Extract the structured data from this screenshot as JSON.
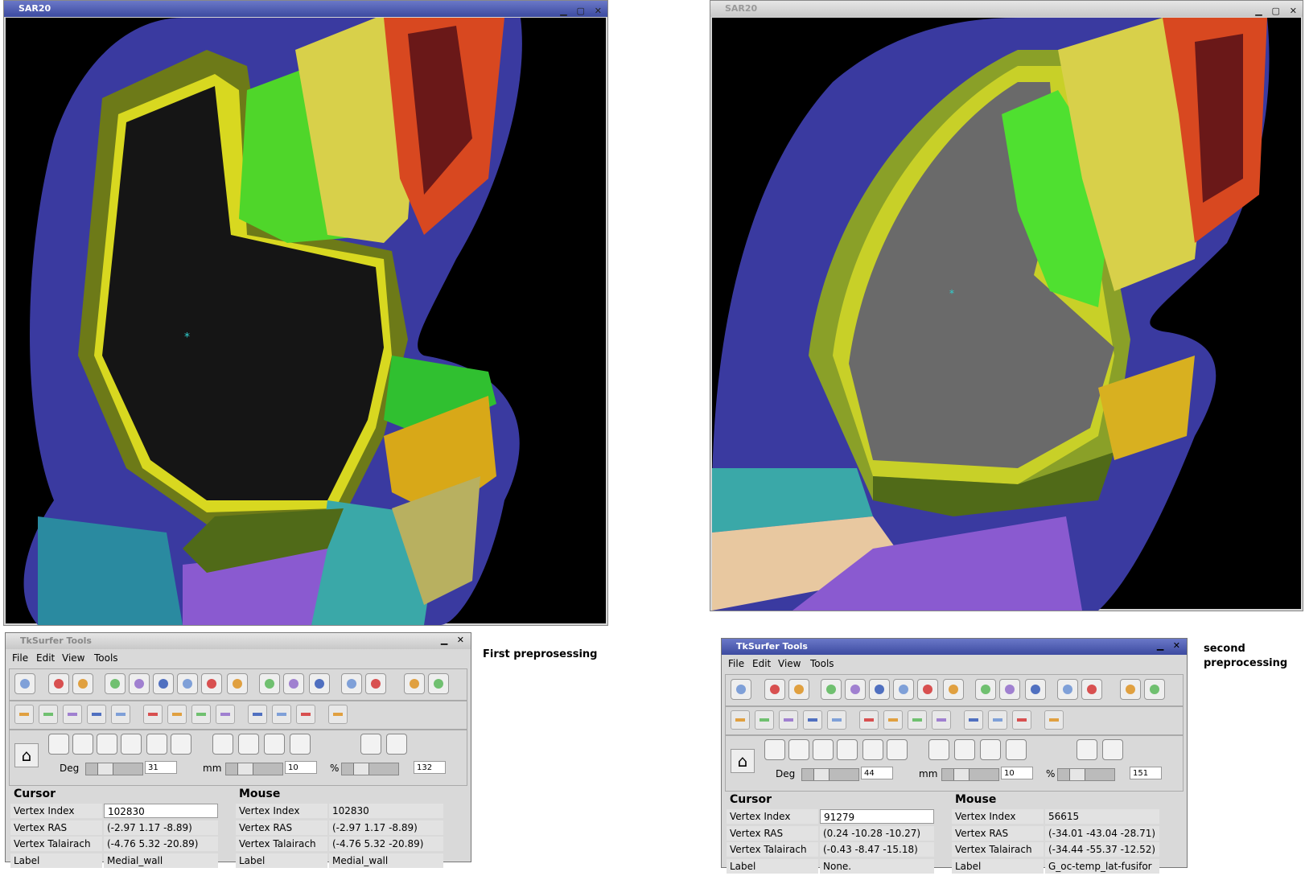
{
  "windows": [
    {
      "title": "SAR20"
    },
    {
      "title": "SAR20"
    }
  ],
  "panels": [
    {
      "title": "TkSurfer Tools",
      "menu": [
        "File",
        "Edit",
        "View",
        "Tools"
      ],
      "deg_label": "Deg",
      "deg": "31",
      "mm_label": "mm",
      "mm": "10",
      "pct_label": "%",
      "pct": "132",
      "cursor": {
        "heading": "Cursor",
        "rows": [
          [
            "Vertex Index",
            "102830"
          ],
          [
            "Vertex RAS",
            "(-2.97  1.17  -8.89)"
          ],
          [
            "Vertex Talairach",
            "(-4.76  5.32  -20.89)"
          ],
          [
            "Label",
            "Medial_wall"
          ]
        ]
      },
      "mouse": {
        "heading": "Mouse",
        "rows": [
          [
            "Vertex Index",
            "102830"
          ],
          [
            "Vertex RAS",
            "(-2.97  1.17  -8.89)"
          ],
          [
            "Vertex Talairach",
            "(-4.76  5.32  -20.89)"
          ],
          [
            "Label",
            "Medial_wall"
          ]
        ]
      },
      "caption": "First preprosessing"
    },
    {
      "title": "TkSurfer Tools",
      "menu": [
        "File",
        "Edit",
        "View",
        "Tools"
      ],
      "deg_label": "Deg",
      "deg": "44",
      "mm_label": "mm",
      "mm": "10",
      "pct_label": "%",
      "pct": "151",
      "cursor": {
        "heading": "Cursor",
        "rows": [
          [
            "Vertex Index",
            "91279"
          ],
          [
            "Vertex RAS",
            "(0.24  -10.28  -10.27)"
          ],
          [
            "Vertex Talairach",
            "(-0.43  -8.47  -15.18)"
          ],
          [
            "Label",
            "None."
          ]
        ]
      },
      "mouse": {
        "heading": "Mouse",
        "rows": [
          [
            "Vertex Index",
            "56615"
          ],
          [
            "Vertex RAS",
            "(-34.01  -43.04  -28.71)"
          ],
          [
            "Vertex Talairach",
            "(-34.44  -55.37  -12.52)"
          ],
          [
            "Label",
            "G_oc-temp_lat-fusifor"
          ]
        ]
      },
      "caption": "second preprocessing"
    }
  ]
}
